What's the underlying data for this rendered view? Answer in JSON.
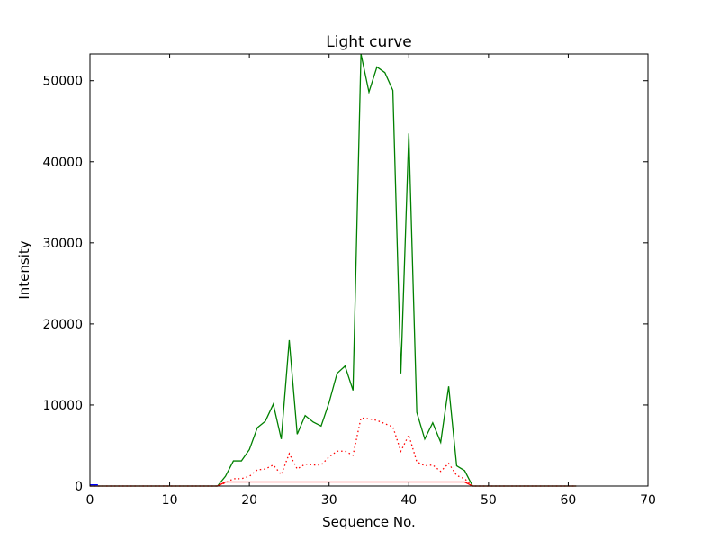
{
  "chart_data": {
    "type": "line",
    "title": "Light curve",
    "xlabel": "Sequence No.",
    "ylabel": "Intensity",
    "xlim": [
      0,
      70
    ],
    "ylim": [
      0,
      53300
    ],
    "xticks": [
      0,
      10,
      20,
      30,
      40,
      50,
      60,
      70
    ],
    "xtick_labels": [
      "0",
      "10",
      "20",
      "30",
      "40",
      "50",
      "60",
      "70"
    ],
    "yticks": [
      0,
      10000,
      20000,
      30000,
      40000,
      50000
    ],
    "ytick_labels": [
      "0",
      "10000",
      "20000",
      "30000",
      "40000",
      "50000"
    ],
    "grid": false,
    "legend": "none",
    "series": [
      {
        "style": "solid",
        "color": "#008000",
        "x": [
          0,
          1,
          2,
          3,
          4,
          5,
          6,
          7,
          8,
          9,
          10,
          11,
          12,
          13,
          14,
          15,
          16,
          17,
          18,
          19,
          20,
          21,
          22,
          23,
          24,
          25,
          26,
          27,
          28,
          29,
          30,
          31,
          32,
          33,
          34,
          35,
          36,
          37,
          38,
          39,
          40,
          41,
          42,
          43,
          44,
          45,
          46,
          47,
          48,
          49,
          50,
          51,
          52,
          53,
          54,
          55,
          56,
          57,
          58,
          59,
          60,
          61
        ],
        "y": [
          0,
          0,
          0,
          0,
          0,
          0,
          0,
          0,
          0,
          0,
          0,
          0,
          0,
          0,
          0,
          0,
          0,
          1200,
          3100,
          3100,
          4500,
          7200,
          8000,
          10100,
          5800,
          18000,
          6400,
          8700,
          7900,
          7400,
          10300,
          13900,
          14800,
          11800,
          53300,
          48600,
          51700,
          51000,
          48800,
          13900,
          43500,
          9100,
          5800,
          7800,
          5400,
          12300,
          2500,
          1900,
          0,
          0,
          0,
          0,
          0,
          0,
          0,
          0,
          0,
          0,
          0,
          0,
          0,
          0
        ]
      },
      {
        "style": "dotted",
        "color": "#ff0000",
        "x": [
          0,
          1,
          2,
          3,
          4,
          5,
          6,
          7,
          8,
          9,
          10,
          11,
          12,
          13,
          14,
          15,
          16,
          17,
          18,
          19,
          20,
          21,
          22,
          23,
          24,
          25,
          26,
          27,
          28,
          29,
          30,
          31,
          32,
          33,
          34,
          35,
          36,
          37,
          38,
          39,
          40,
          41,
          42,
          43,
          44,
          45,
          46,
          47,
          48,
          49,
          50,
          51,
          52,
          53,
          54,
          55,
          56,
          57,
          58,
          59,
          60,
          61
        ],
        "y": [
          0,
          0,
          0,
          0,
          0,
          0,
          0,
          0,
          0,
          0,
          0,
          0,
          0,
          0,
          0,
          0,
          0,
          400,
          900,
          900,
          1200,
          2000,
          2100,
          2600,
          1400,
          4000,
          2100,
          2700,
          2600,
          2600,
          3600,
          4300,
          4300,
          3800,
          8400,
          8300,
          8100,
          7700,
          7300,
          4300,
          6300,
          3000,
          2500,
          2600,
          1800,
          2800,
          1300,
          900,
          0,
          0,
          0,
          0,
          0,
          0,
          0,
          0,
          0,
          0,
          0,
          0,
          0,
          0
        ]
      },
      {
        "style": "solid",
        "color": "#ff0000",
        "x": [
          0,
          1,
          2,
          3,
          4,
          5,
          6,
          7,
          8,
          9,
          10,
          11,
          12,
          13,
          14,
          15,
          16,
          17,
          18,
          19,
          20,
          21,
          22,
          23,
          24,
          25,
          26,
          27,
          28,
          29,
          30,
          31,
          32,
          33,
          34,
          35,
          36,
          37,
          38,
          39,
          40,
          41,
          42,
          43,
          44,
          45,
          46,
          47,
          48,
          49,
          50,
          51,
          52,
          53,
          54,
          55,
          56,
          57,
          58,
          59,
          60,
          61
        ],
        "y": [
          0,
          0,
          0,
          0,
          0,
          0,
          0,
          0,
          0,
          0,
          0,
          0,
          0,
          0,
          0,
          0,
          0,
          500,
          500,
          500,
          500,
          500,
          500,
          500,
          500,
          500,
          500,
          500,
          500,
          500,
          500,
          500,
          500,
          500,
          500,
          500,
          500,
          500,
          500,
          500,
          500,
          500,
          500,
          500,
          500,
          500,
          500,
          500,
          0,
          0,
          0,
          0,
          0,
          0,
          0,
          0,
          0,
          0,
          0,
          0,
          0,
          0
        ]
      },
      {
        "style": "solid",
        "color": "#0000ff",
        "x": [
          0,
          1
        ],
        "y": [
          150,
          150
        ]
      }
    ]
  }
}
